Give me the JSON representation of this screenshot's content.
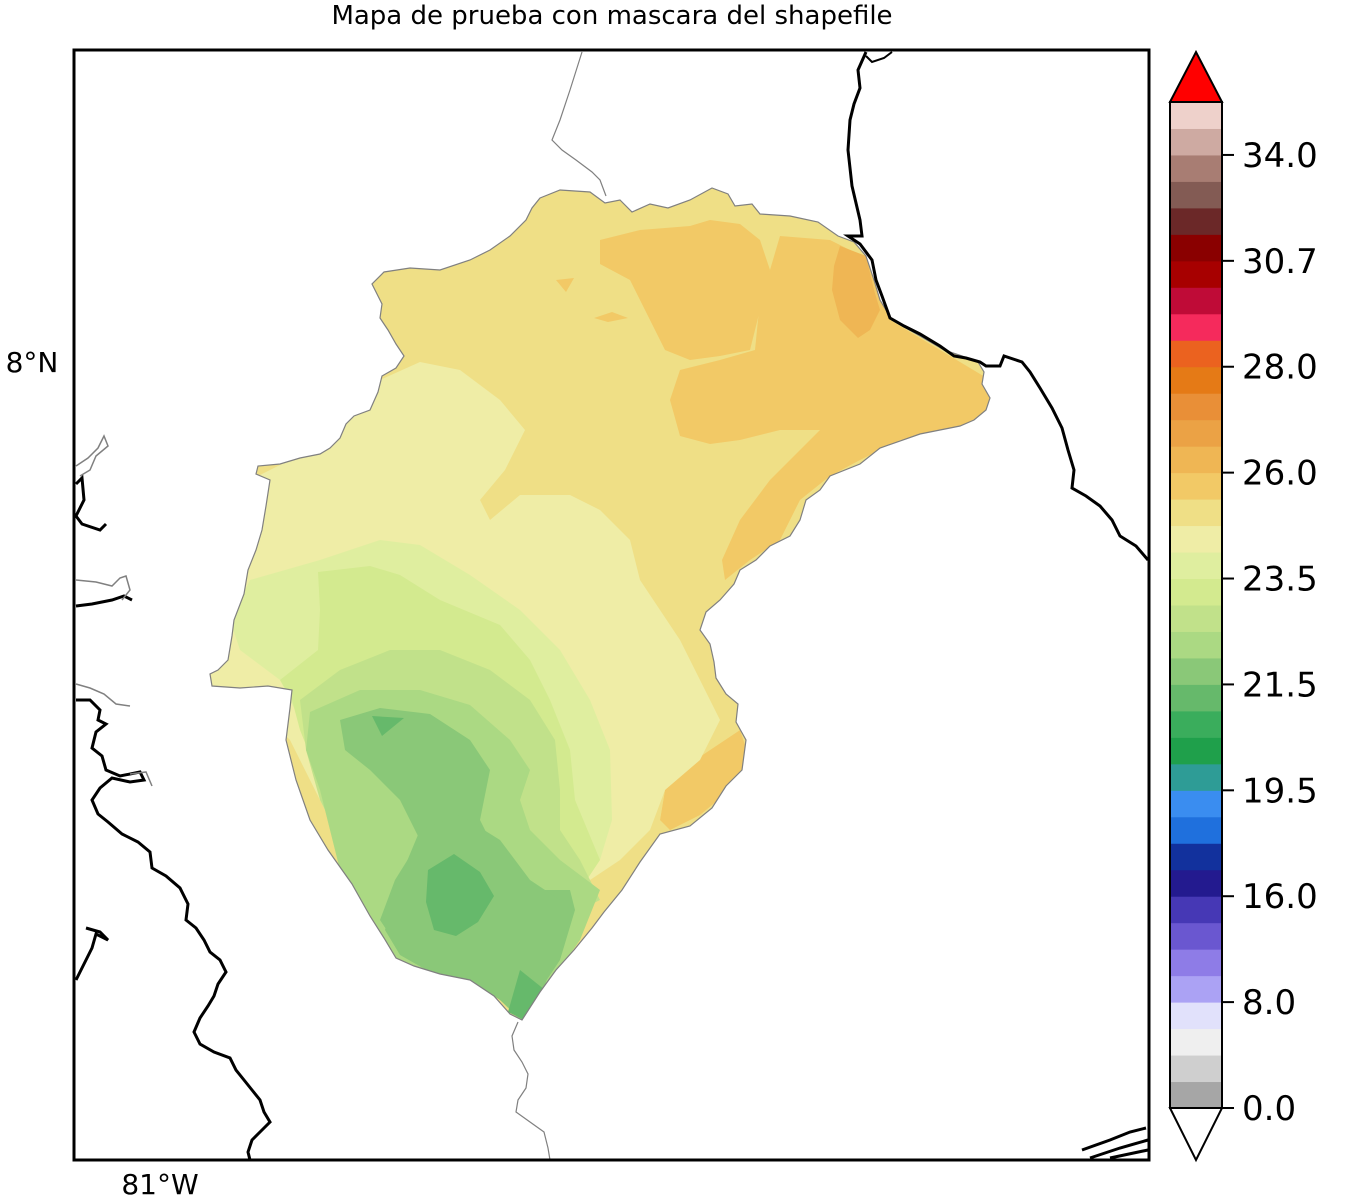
{
  "title": "Mapa de prueba con mascara del shapefile",
  "gridlines": {
    "lat_label": "8°N",
    "lon_label": "81°W"
  },
  "colorbar": {
    "tick_labels": [
      "0.0",
      "8.0",
      "16.0",
      "19.5",
      "21.5",
      "23.5",
      "26.0",
      "28.0",
      "30.7",
      "34.0"
    ],
    "extend": "both",
    "under_color": "#ffffff",
    "over_color": "#ff0000",
    "colors": [
      "#a6a6a6",
      "#cfcfcf",
      "#efefef",
      "#e1e1fb",
      "#aba2f4",
      "#8e7ce7",
      "#6a57d0",
      "#4638b5",
      "#231a8f",
      "#12319d",
      "#1f70dd",
      "#3a8df0",
      "#2e9c96",
      "#1fa04b",
      "#3aad5c",
      "#66b96b",
      "#8ac878",
      "#abd983",
      "#c1e18a",
      "#d3ea8f",
      "#dfee9f",
      "#efeda6",
      "#efdf86",
      "#f2c966",
      "#efb654",
      "#eba245",
      "#e98f37",
      "#e57a16",
      "#eb621f",
      "#f52a5c",
      "#bf0b37",
      "#a70000",
      "#8a0000",
      "#6b2828",
      "#835b54",
      "#a87d73",
      "#ceaaa2",
      "#eed1cb"
    ]
  },
  "legend_colors": {
    "region_outline": "#808080",
    "coastline": "#000000",
    "border": "#808080"
  }
}
